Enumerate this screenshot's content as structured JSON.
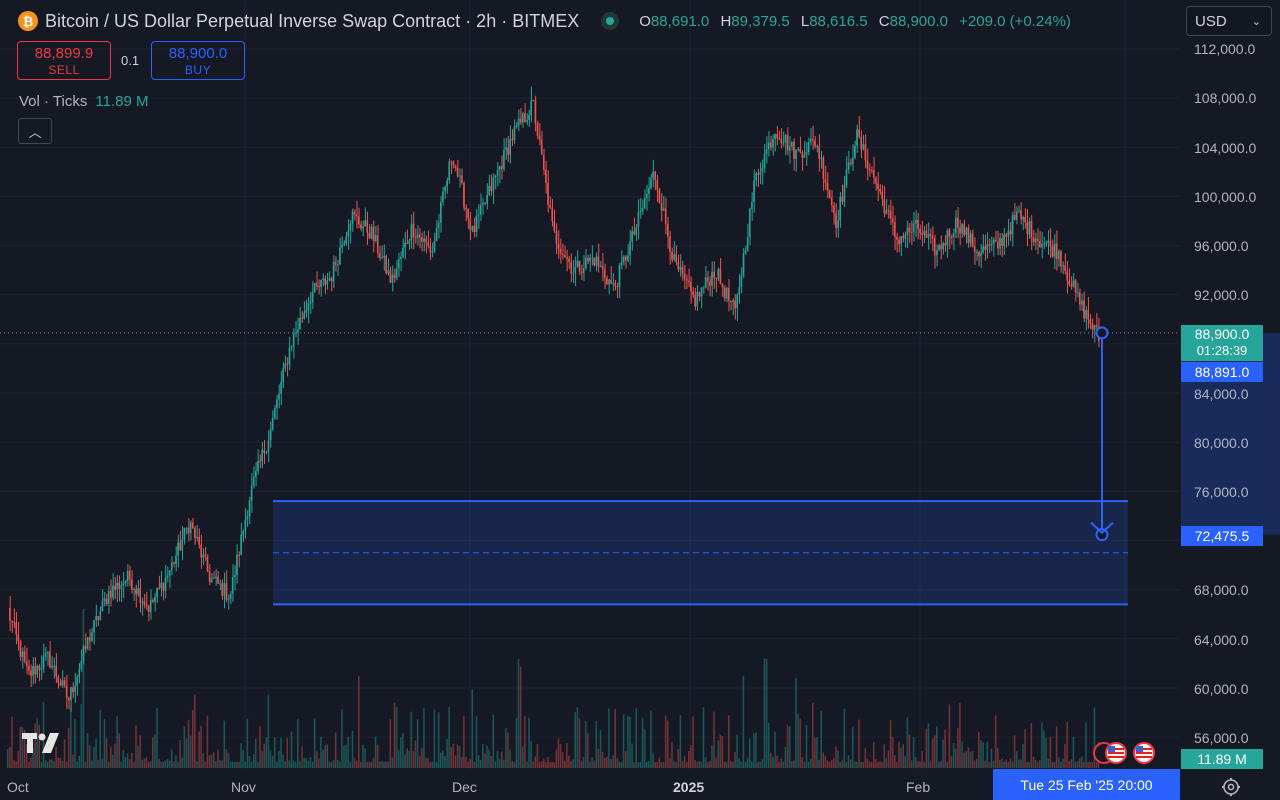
{
  "header": {
    "icon_letter": "₿",
    "title": "Bitcoin / US Dollar Perpetual Inverse Swap Contract · 2h · BITMEX",
    "ohlc": {
      "o_label": "O",
      "o": "88,691.0",
      "h_label": "H",
      "h": "89,379.5",
      "l_label": "L",
      "l": "88,616.5",
      "c_label": "C",
      "c": "88,900.0",
      "change": "+209.0 (+0.24%)"
    }
  },
  "currency": {
    "value": "USD",
    "chevron": "⌄"
  },
  "trade": {
    "sell_price": "88,899.9",
    "sell_label": "SELL",
    "spread": "0.1",
    "buy_price": "88,900.0",
    "buy_label": "BUY"
  },
  "volume": {
    "label": "Vol · Ticks",
    "value": "11.89 M"
  },
  "collapse_symbol": "︿",
  "price_axis": {
    "labels": [
      "112,000.0",
      "108,000.0",
      "104,000.0",
      "100,000.0",
      "96,000.0",
      "92,000.0",
      "84,000.0",
      "80,000.0",
      "76,000.0",
      "68,000.0",
      "64,000.0",
      "60,000.0",
      "56,000.0"
    ]
  },
  "price_tags": {
    "last": "88,900.0",
    "countdown": "01:28:39",
    "cursor": "88,891.0",
    "target": "72,475.5",
    "volume": "11.89 M"
  },
  "time_axis": {
    "oct": "Oct",
    "nov": "Nov",
    "dec": "Dec",
    "year": "2025",
    "feb": "Feb",
    "cursor": "Tue 25 Feb '25   20:00"
  },
  "icons": {
    "logo": "tradingview-logo-icon",
    "settings": "gear-icon",
    "flags": "us-flag-icon",
    "currency": "chevron-down-icon"
  },
  "colors": {
    "up": "#26a69a",
    "down": "#ef5350",
    "accent": "#2962ff",
    "background": "#151924"
  },
  "chart_data": {
    "type": "candlestick",
    "symbol": "XBTUSD",
    "timeframe": "2h",
    "ylim": [
      54000,
      113000
    ],
    "last_price": 88900.0,
    "cursor_price": 88891.0,
    "target_price": 72475.5,
    "x_ticks": [
      "Oct",
      "Nov",
      "Dec",
      "2025",
      "Feb"
    ],
    "close_path": [
      [
        "Oct",
        66300
      ],
      [
        "Oct",
        61000
      ],
      [
        "Oct",
        62500
      ],
      [
        "Oct",
        59000
      ],
      [
        "Oct",
        64000
      ],
      [
        "Oct",
        67800
      ],
      [
        "Oct",
        69000
      ],
      [
        "Oct",
        66500
      ],
      [
        "Oct",
        69500
      ],
      [
        "Oct",
        73500
      ],
      [
        "Oct",
        69000
      ],
      [
        "Nov",
        67500
      ],
      [
        "Nov",
        75800
      ],
      [
        "Nov",
        81000
      ],
      [
        "Nov",
        88000
      ],
      [
        "Nov",
        92000
      ],
      [
        "Nov",
        93500
      ],
      [
        "Nov",
        98500
      ],
      [
        "Nov",
        97000
      ],
      [
        "Nov",
        93000
      ],
      [
        "Nov",
        97500
      ],
      [
        "Dec",
        95500
      ],
      [
        "Dec",
        103500
      ],
      [
        "Dec",
        97000
      ],
      [
        "Dec",
        101000
      ],
      [
        "Dec",
        105000
      ],
      [
        "Dec",
        107500
      ],
      [
        "Dec",
        97000
      ],
      [
        "Dec",
        94000
      ],
      [
        "Dec",
        95000
      ],
      [
        "Dec",
        92500
      ],
      [
        "2025",
        97000
      ],
      [
        "2025",
        102000
      ],
      [
        "2025",
        94500
      ],
      [
        "2025",
        91500
      ],
      [
        "2025",
        94000
      ],
      [
        "2025",
        90500
      ],
      [
        "2025",
        101500
      ],
      [
        "2025",
        105500
      ],
      [
        "2025",
        103500
      ],
      [
        "2025",
        104500
      ],
      [
        "Feb",
        98000
      ],
      [
        "Feb",
        105000
      ],
      [
        "Feb",
        101000
      ],
      [
        "Feb",
        96500
      ],
      [
        "Feb",
        97500
      ],
      [
        "Feb",
        95500
      ],
      [
        "Feb",
        98000
      ],
      [
        "Feb",
        95500
      ],
      [
        "Feb",
        96000
      ],
      [
        "Feb",
        98500
      ],
      [
        "Feb",
        96500
      ],
      [
        "Feb",
        95500
      ],
      [
        "Feb",
        91500
      ],
      [
        "Feb",
        88500
      ]
    ],
    "volume_value": "11.89 M",
    "range_zone": {
      "top": 75200,
      "mid": 71000,
      "bottom": 66800
    }
  }
}
